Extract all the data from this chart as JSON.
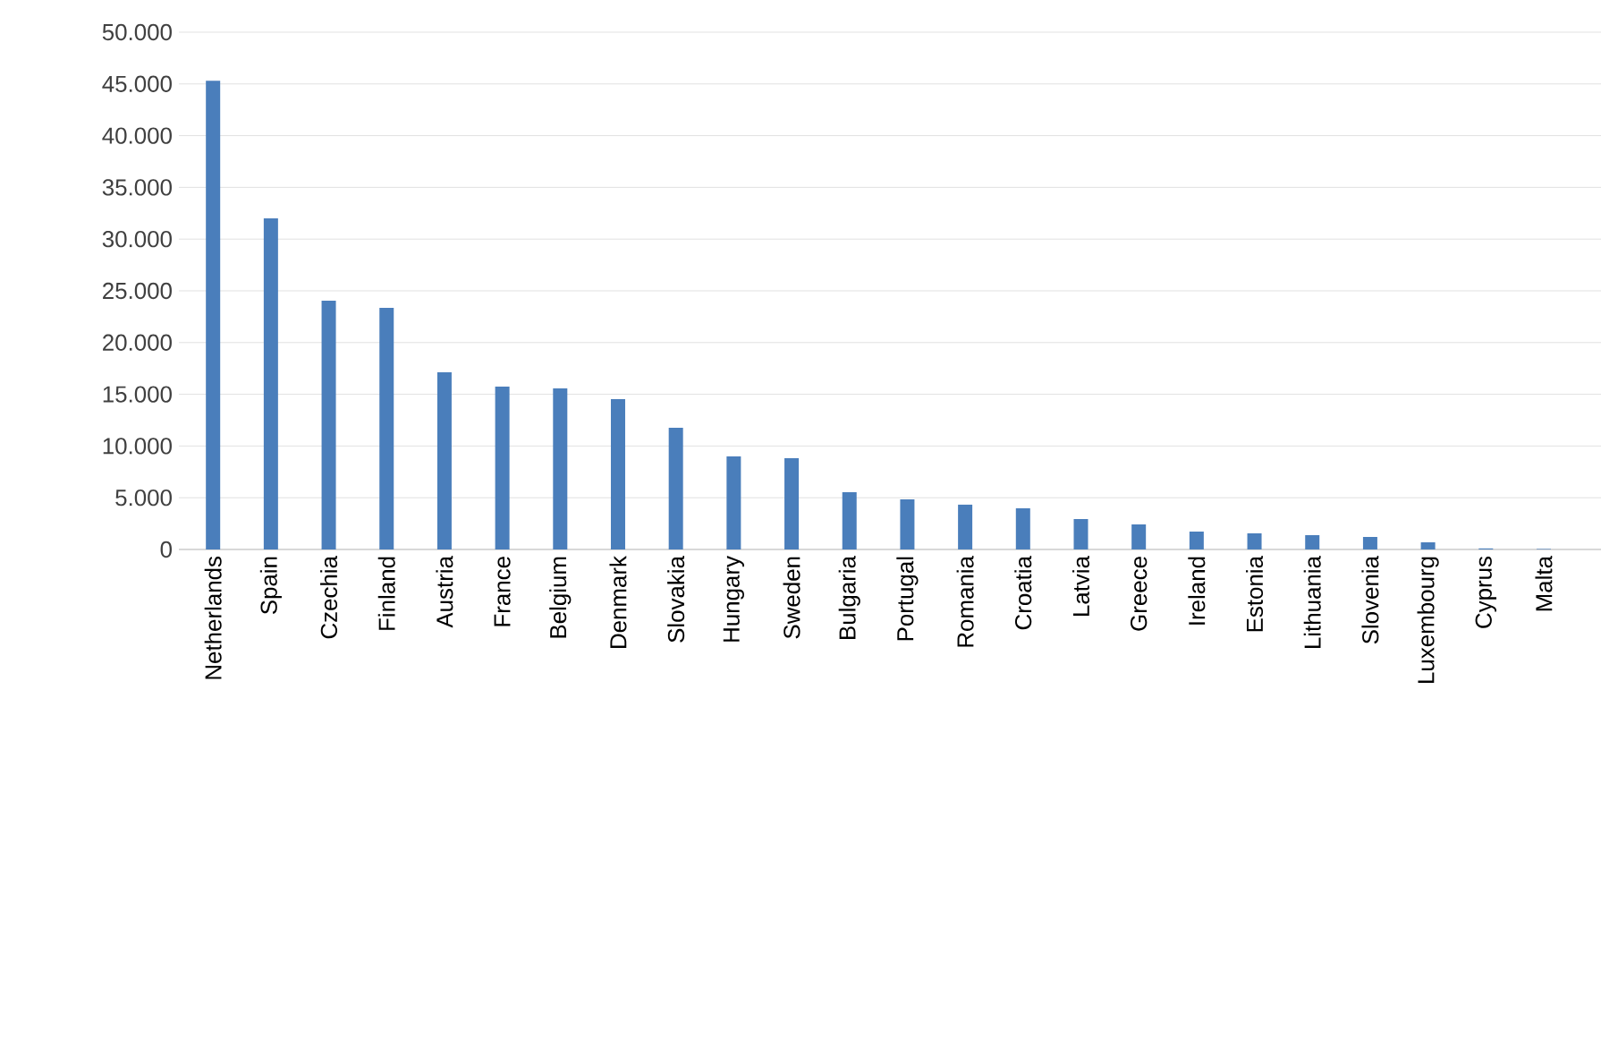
{
  "chart_data": {
    "type": "bar",
    "categories": [
      "Netherlands",
      "Spain",
      "Czechia",
      "Finland",
      "Austria",
      "France",
      "Belgium",
      "Denmark",
      "Slovakia",
      "Hungary",
      "Sweden",
      "Bulgaria",
      "Portugal",
      "Romania",
      "Croatia",
      "Latvia",
      "Greece",
      "Ireland",
      "Estonia",
      "Lithuania",
      "Slovenia",
      "Luxembourg",
      "Cyprus",
      "Malta"
    ],
    "values": [
      45300,
      32000,
      24050,
      23360,
      17130,
      15740,
      15570,
      14530,
      11760,
      9000,
      8820,
      5540,
      4840,
      4330,
      3980,
      2940,
      2420,
      1730,
      1560,
      1380,
      1210,
      690,
      100,
      50
    ],
    "color": "#4a7ebb",
    "ylim": [
      0,
      50000
    ],
    "yticks": [
      0,
      {
        "value": 5000,
        "label": "5.000"
      },
      {
        "value": 10000,
        "label": "10.000"
      },
      {
        "value": 15000,
        "label": "15.000"
      },
      {
        "value": 20000,
        "label": "20.000"
      },
      {
        "value": 25000,
        "label": "25.000"
      },
      {
        "value": 30000,
        "label": "30.000"
      },
      {
        "value": 35000,
        "label": "35.000"
      },
      {
        "value": 40000,
        "label": "40.000"
      },
      {
        "value": 45000,
        "label": "45.000"
      },
      {
        "value": 50000,
        "label": "50.000"
      }
    ],
    "grid": "y"
  }
}
